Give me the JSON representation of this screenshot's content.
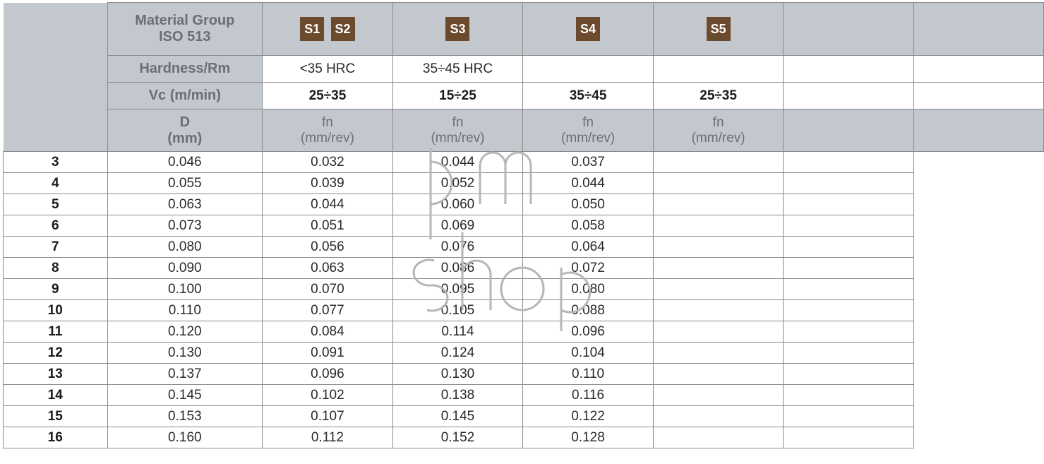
{
  "colors": {
    "header_bg": "#c2c8ce",
    "badge_bg": "#6b4a2e",
    "badge_text": "#ffffff",
    "border": "#8a8a8a",
    "header_text": "#6a6f75",
    "body_text": "#2a2a2a",
    "bold_text": "#1a1a1a",
    "watermark_stroke": "#b6b6b6"
  },
  "header": {
    "material_group_line1": "Material Group",
    "material_group_line2": "ISO 513",
    "hardness_label": "Hardness/Rm",
    "vc_label": "Vc (m/min)",
    "d_label_line1": "D",
    "d_label_line2": "(mm)",
    "fn_label_line1": "fn",
    "fn_label_line2": "(mm/rev)"
  },
  "groups": [
    {
      "badges": [
        "S1",
        "S2"
      ],
      "hardness": "<35 HRC",
      "vc": "25÷35"
    },
    {
      "badges": [
        "S3"
      ],
      "hardness": "35÷45 HRC",
      "vc": "15÷25"
    },
    {
      "badges": [
        "S4"
      ],
      "hardness": "",
      "vc": "35÷45"
    },
    {
      "badges": [
        "S5"
      ],
      "hardness": "",
      "vc": "25÷35"
    }
  ],
  "rows": [
    {
      "d": "3",
      "fn": [
        "0.046",
        "0.032",
        "0.044",
        "0.037"
      ]
    },
    {
      "d": "4",
      "fn": [
        "0.055",
        "0.039",
        "0.052",
        "0.044"
      ]
    },
    {
      "d": "5",
      "fn": [
        "0.063",
        "0.044",
        "0.060",
        "0.050"
      ]
    },
    {
      "d": "6",
      "fn": [
        "0.073",
        "0.051",
        "0.069",
        "0.058"
      ]
    },
    {
      "d": "7",
      "fn": [
        "0.080",
        "0.056",
        "0.076",
        "0.064"
      ]
    },
    {
      "d": "8",
      "fn": [
        "0.090",
        "0.063",
        "0.086",
        "0.072"
      ]
    },
    {
      "d": "9",
      "fn": [
        "0.100",
        "0.070",
        "0.095",
        "0.080"
      ]
    },
    {
      "d": "10",
      "fn": [
        "0.110",
        "0.077",
        "0.105",
        "0.088"
      ]
    },
    {
      "d": "11",
      "fn": [
        "0.120",
        "0.084",
        "0.114",
        "0.096"
      ]
    },
    {
      "d": "12",
      "fn": [
        "0.130",
        "0.091",
        "0.124",
        "0.104"
      ]
    },
    {
      "d": "13",
      "fn": [
        "0.137",
        "0.096",
        "0.130",
        "0.110"
      ]
    },
    {
      "d": "14",
      "fn": [
        "0.145",
        "0.102",
        "0.138",
        "0.116"
      ]
    },
    {
      "d": "15",
      "fn": [
        "0.153",
        "0.107",
        "0.145",
        "0.122"
      ]
    },
    {
      "d": "16",
      "fn": [
        "0.160",
        "0.112",
        "0.152",
        "0.128"
      ]
    }
  ],
  "watermark": {
    "line1": "pm",
    "line2": "shop"
  }
}
